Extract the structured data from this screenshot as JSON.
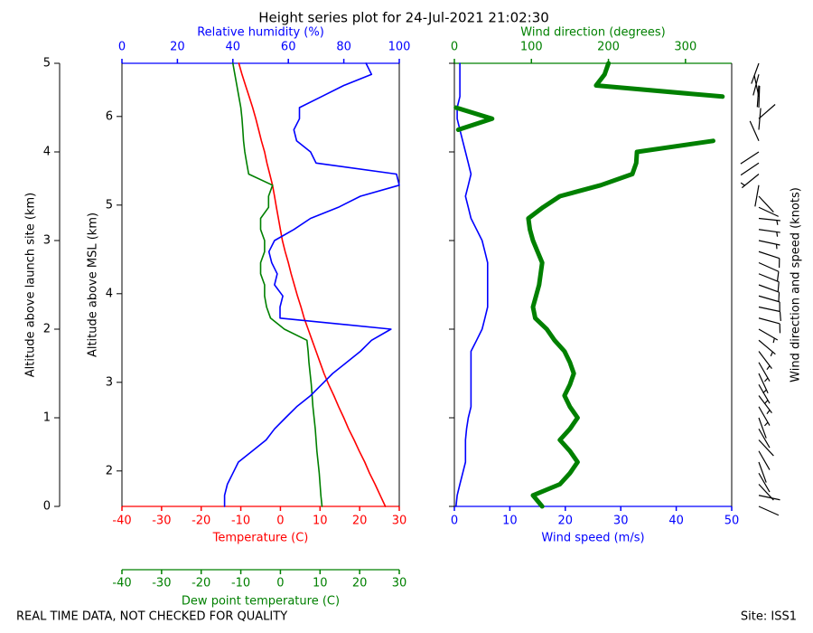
{
  "chart_data": {
    "type": "line",
    "title": "Height series plot for 24-Jul-2021 21:02:30",
    "footer_left": "REAL TIME DATA, NOT CHECKED FOR QUALITY",
    "footer_right": "Site: ISS1",
    "altitude": [
      0,
      0.125,
      0.25,
      0.375,
      0.5,
      0.625,
      0.75,
      0.875,
      1,
      1.125,
      1.25,
      1.375,
      1.5,
      1.625,
      1.75,
      1.875,
      2,
      2.125,
      2.25,
      2.375,
      2.5,
      2.625,
      2.75,
      2.875,
      3,
      3.125,
      3.25,
      3.375,
      3.5,
      3.625,
      3.75,
      3.875,
      4,
      4.125,
      4.25,
      4.375,
      4.5,
      4.625,
      4.75,
      4.875,
      5
    ],
    "left_panel": {
      "y_axis": {
        "label": "Altitude above launch site (km)",
        "lim": [
          0,
          5
        ],
        "ticks": [
          0,
          1,
          2,
          3,
          4,
          5
        ]
      },
      "y2_axis": {
        "label": "Altitude above MSL (km)",
        "lim": [
          1.6,
          6.6
        ],
        "ticks": [
          2,
          3,
          4,
          5,
          6
        ]
      },
      "bottom_axis": {
        "label": "Temperature (C)",
        "color": "#ff0000",
        "lim": [
          -40,
          30
        ],
        "ticks": [
          -40,
          -30,
          -20,
          -10,
          0,
          10,
          20,
          30
        ]
      },
      "dew_axis": {
        "label": "Dew point temperature (C)",
        "color": "#008000",
        "lim": [
          -40,
          30
        ],
        "ticks": [
          -40,
          -30,
          -20,
          -10,
          0,
          10,
          20,
          30
        ]
      },
      "top_axis": {
        "label": "Relative humidity (%)",
        "color": "#0000ff",
        "lim": [
          0,
          100
        ],
        "ticks": [
          0,
          20,
          40,
          60,
          80,
          100
        ]
      },
      "series": [
        {
          "axis": "bottom_axis",
          "color": "#ff0000",
          "values": [
            26.5,
            25.2,
            23.9,
            22.5,
            21.3,
            19.9,
            18.6,
            17.2,
            16,
            14.7,
            13.5,
            12.2,
            11,
            10,
            9,
            8,
            7,
            6,
            5.2,
            4.3,
            3.5,
            2.7,
            2,
            1.2,
            0.5,
            0,
            -0.5,
            -1,
            -1.5,
            -2,
            -2.7,
            -3.4,
            -4,
            -4.8,
            -5.5,
            -6.2,
            -7,
            -7.9,
            -8.8,
            -9.7,
            -10.5
          ]
        },
        {
          "axis": "dew_axis",
          "color": "#008000",
          "values": [
            10.5,
            10.2,
            10,
            9.8,
            9.5,
            9.2,
            9,
            8.8,
            8.5,
            8.2,
            8,
            7.8,
            7.5,
            7.2,
            7,
            6.7,
            1,
            -2.5,
            -3.5,
            -4,
            -4,
            -5,
            -5,
            -4,
            -4,
            -5,
            -5,
            -3,
            -3,
            -2,
            -8,
            -8.5,
            -9,
            -9.3,
            -9.5,
            -9.7,
            -10,
            -10.5,
            -11,
            -11.5,
            -12
          ]
        },
        {
          "axis": "top_axis",
          "color": "#0000ff",
          "values": [
            37,
            37,
            38,
            40,
            42,
            47,
            52,
            55,
            59,
            63,
            68,
            72,
            76,
            81,
            86,
            90,
            97,
            57,
            57,
            58,
            55,
            56,
            54,
            53,
            55,
            62,
            68,
            78,
            86,
            100,
            99,
            70,
            68,
            63,
            62,
            64,
            64,
            72,
            80,
            90,
            88
          ]
        }
      ]
    },
    "right_panel": {
      "bottom_axis": {
        "label": "Wind speed (m/s)",
        "color": "#0000ff",
        "lim": [
          0,
          50
        ],
        "ticks": [
          0,
          10,
          20,
          30,
          40,
          50
        ]
      },
      "top_axis": {
        "label": "Wind direction (degrees)",
        "color": "#008000",
        "lim": [
          0,
          360
        ],
        "ticks": [
          0,
          100,
          200,
          300
        ]
      },
      "series": [
        {
          "axis": "bottom_axis",
          "color": "#0000ff",
          "values": [
            0.3,
            0.5,
            1,
            1.5,
            2,
            2,
            2,
            2.2,
            2.5,
            3,
            3,
            3,
            3,
            3,
            3,
            4,
            5,
            5.5,
            6,
            6,
            6,
            6,
            6,
            5.5,
            5,
            4,
            3,
            2.5,
            2,
            2.5,
            3,
            2.5,
            2,
            1.5,
            1,
            0.5,
            0.5,
            1,
            1,
            1,
            1
          ]
        },
        {
          "axis": "top_axis",
          "color": "#008000",
          "values": [
            114,
            102,
            137,
            150,
            160,
            150,
            137,
            150,
            160,
            150,
            143,
            150,
            155,
            150,
            143,
            130,
            120,
            105,
            102,
            106,
            110,
            112,
            114,
            108,
            102,
            98,
            96,
            115,
            137,
            190,
            231,
            236,
            237,
            336,
            5,
            49,
            2,
            348,
            184,
            195,
            200
          ]
        }
      ],
      "barb_label": "Wind direction and speed (knots)"
    }
  }
}
